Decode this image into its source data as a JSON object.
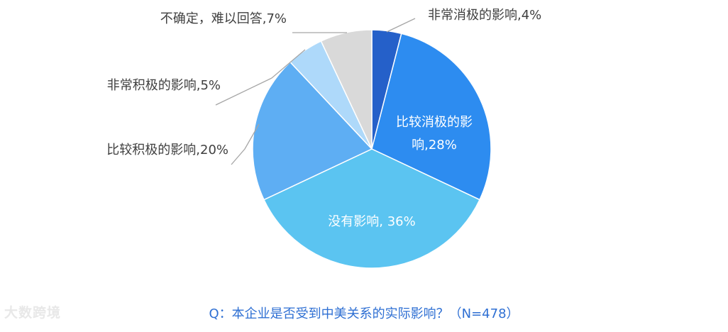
{
  "chart_data": {
    "type": "pie",
    "start_angle_deg": 0,
    "direction": "clockwise",
    "slices": [
      {
        "name": "非常消极的影响",
        "value": 4,
        "label": "非常消极的影响,4%",
        "color": "#2560c9",
        "label_position": "outside"
      },
      {
        "name": "比较消极的影响",
        "value": 28,
        "label_lines": [
          "比较消极的影",
          "响,28%"
        ],
        "color": "#2d8cf0",
        "label_position": "inside"
      },
      {
        "name": "没有影响",
        "value": 36,
        "label": "没有影响, 36%",
        "color": "#5bc4f1",
        "label_position": "inside"
      },
      {
        "name": "比较积极的影响",
        "value": 20,
        "label": "比较积极的影响,20%",
        "color": "#5eaef3",
        "label_position": "outside"
      },
      {
        "name": "非常积极的影响",
        "value": 5,
        "label": "非常积极的影响,5%",
        "color": "#aed9fa",
        "label_position": "outside"
      },
      {
        "name": "不确定，难以回答",
        "value": 7,
        "label": "不确定，难以回答,7%",
        "color": "#d9d9d9",
        "label_position": "outside"
      }
    ],
    "legend": "none"
  },
  "question": "Q：本企业是否受到中美关系的实际影响？（N=478）",
  "watermark": "大数跨境"
}
